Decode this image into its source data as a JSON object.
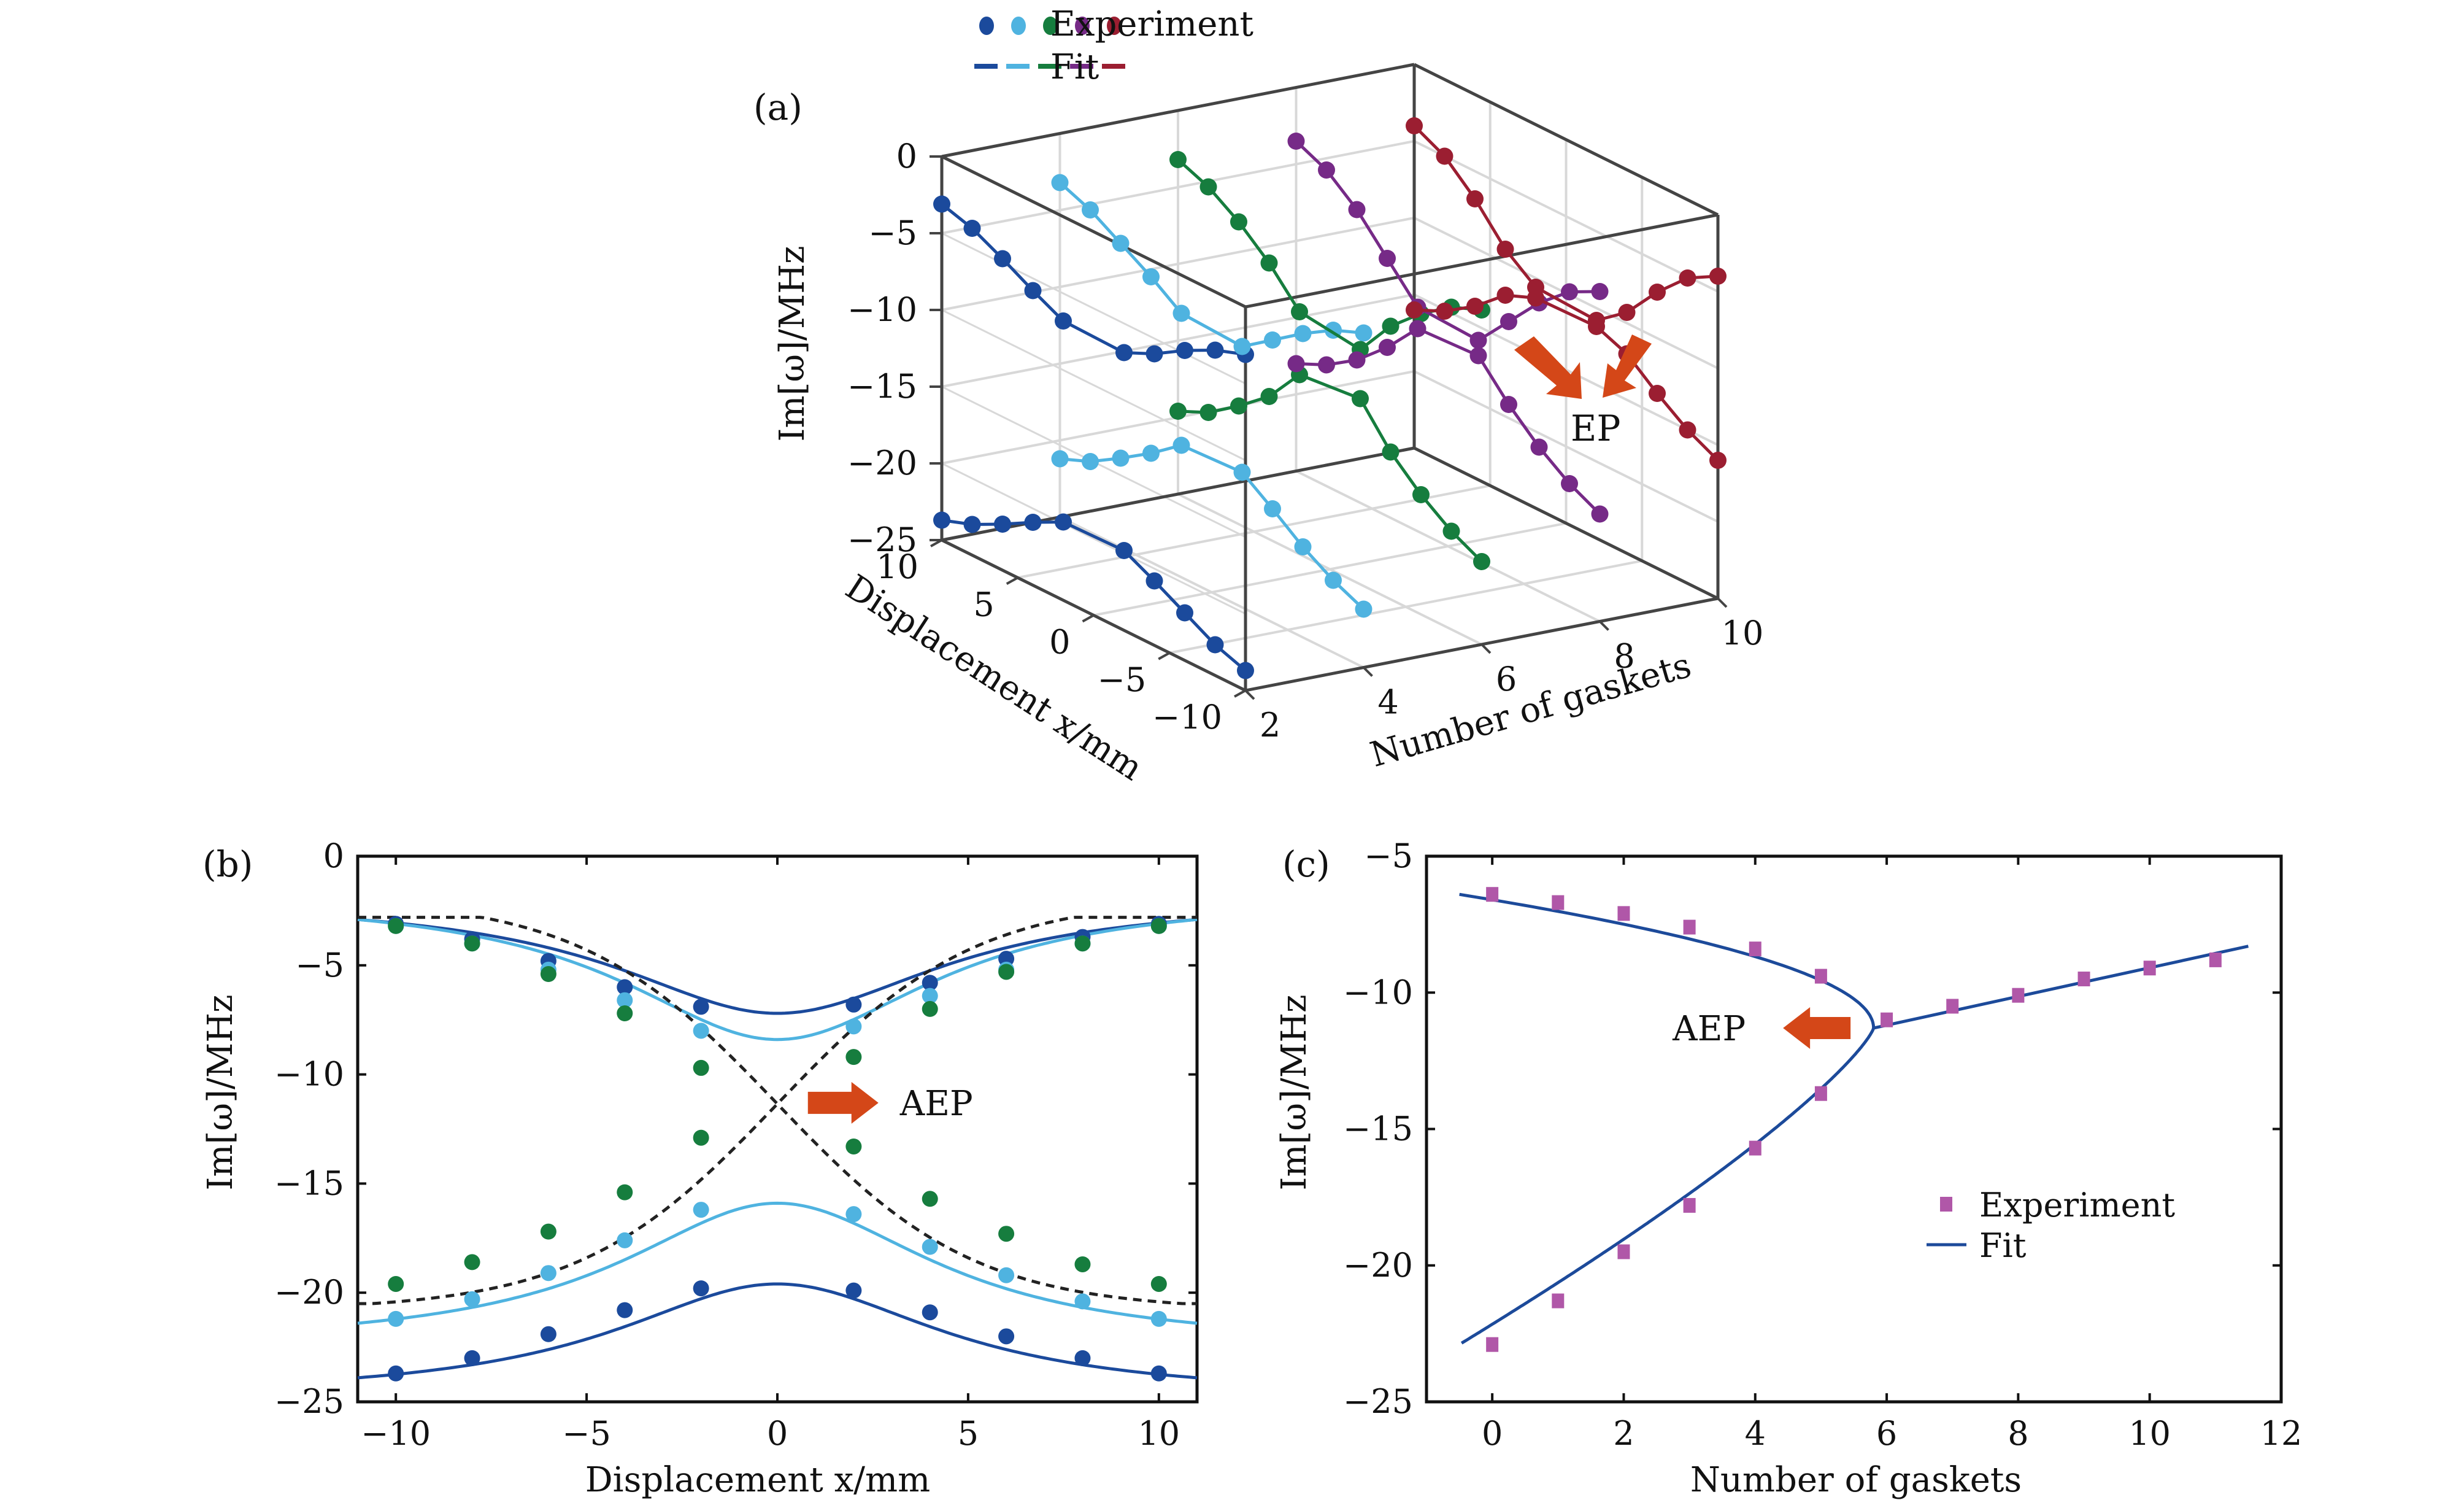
{
  "colors": {
    "dark_blue": "#1b4a9c",
    "light_blue": "#4fb3e0",
    "green": "#167d3e",
    "purple": "#762a87",
    "red": "#9b1e31",
    "magenta": "#b057a8",
    "fit_blue": "#1c4a9a",
    "arrow": "#d44718",
    "dashed": "#222222",
    "grid": "#d8d8d8",
    "axis": "#444444"
  },
  "chart_data": [
    {
      "panel": "(a)",
      "type": "scatter",
      "projection": "3d",
      "legend": {
        "placement": "top-center",
        "entries": [
          {
            "label": "Experiment",
            "marker": "dots",
            "colors": [
              "dark_blue",
              "light_blue",
              "green",
              "purple",
              "red"
            ]
          },
          {
            "label": "Fit",
            "marker": "dashes",
            "colors": [
              "dark_blue",
              "light_blue",
              "green",
              "purple",
              "red"
            ]
          }
        ]
      },
      "xlabel": "Number of gaskets",
      "ylabel": "Displacement x/mm",
      "zlabel": "Im[ω]/MHz",
      "xlim": [
        2,
        10
      ],
      "ylim": [
        -10,
        10
      ],
      "zlim": [
        -25,
        0
      ],
      "x_ticks": [
        "2",
        "4",
        "6",
        "8",
        "10"
      ],
      "y_ticks": [
        "10",
        "5",
        "0",
        "−5",
        "−10"
      ],
      "z_ticks": [
        "0",
        "−5",
        "−10",
        "−15",
        "−20",
        "−25"
      ],
      "annotation": "EP",
      "series": [
        {
          "gaskets": 2,
          "color": "dark_blue",
          "x": [
            -10,
            -8,
            -6,
            -4,
            -2,
            2,
            4,
            6,
            8,
            10
          ],
          "upper": [
            -3.1,
            -3.8,
            -4.8,
            -6.0,
            -6.9,
            -6.8,
            -5.8,
            -4.7,
            -3.7,
            -3.1
          ],
          "lower": [
            -23.7,
            -23.0,
            -21.9,
            -20.8,
            -19.8,
            -19.9,
            -20.9,
            -22.0,
            -23.0,
            -23.7
          ]
        },
        {
          "gaskets": 4,
          "color": "light_blue",
          "x": [
            -10,
            -8,
            -6,
            -4,
            -2,
            2,
            4,
            6,
            8,
            10
          ],
          "upper": [
            -3.2,
            -4.0,
            -5.2,
            -6.6,
            -8.0,
            -7.8,
            -6.4,
            -5.2,
            -4.0,
            -3.2
          ],
          "lower": [
            -21.2,
            -20.3,
            -19.1,
            -17.6,
            -16.2,
            -16.4,
            -17.9,
            -19.2,
            -20.4,
            -21.2
          ]
        },
        {
          "gaskets": 6,
          "color": "green",
          "x": [
            -10,
            -8,
            -6,
            -4,
            -2,
            2,
            4,
            6,
            8,
            10
          ],
          "upper": [
            -3.2,
            -4.0,
            -5.4,
            -7.2,
            -9.7,
            -9.2,
            -7.0,
            -5.3,
            -4.0,
            -3.2
          ],
          "lower": [
            -19.6,
            -18.6,
            -17.2,
            -15.4,
            -12.9,
            -13.3,
            -15.7,
            -17.3,
            -18.7,
            -19.6
          ]
        },
        {
          "gaskets": 8,
          "color": "purple",
          "x": [
            -10,
            -8,
            -6,
            -4,
            -2,
            2,
            4,
            6,
            8,
            10
          ],
          "upper": [
            -3.5,
            -4.5,
            -6.2,
            -8.4,
            -10.6,
            -10.4,
            -8.2,
            -6.0,
            -4.4,
            -3.5
          ],
          "lower": [
            -18.0,
            -17.0,
            -15.6,
            -13.8,
            -11.6,
            -11.8,
            -14.0,
            -15.8,
            -17.1,
            -18.0
          ]
        },
        {
          "gaskets": 10,
          "color": "red",
          "x": [
            -10,
            -8,
            -6,
            -4,
            -2,
            2,
            4,
            6,
            8,
            10
          ],
          "upper": [
            -4.0,
            -5.1,
            -7.0,
            -9.3,
            -10.8,
            -10.6,
            -9.1,
            -6.8,
            -5.0,
            -4.0
          ],
          "lower": [
            -16.0,
            -15.0,
            -13.6,
            -12.0,
            -11.2,
            -11.3,
            -12.1,
            -13.8,
            -15.1,
            -16.0
          ]
        }
      ]
    },
    {
      "panel": "(b)",
      "type": "line",
      "xlabel": "Displacement x/mm",
      "ylabel": "Im[ω]/MHz",
      "xlim": [
        -11,
        11
      ],
      "ylim": [
        -25,
        0
      ],
      "x_ticks": [
        -10,
        -5,
        0,
        5,
        10
      ],
      "x_tick_labels": [
        "−10",
        "−5",
        "0",
        "5",
        "10"
      ],
      "y_ticks": [
        0,
        -5,
        -10,
        -15,
        -20,
        -25
      ],
      "y_tick_labels": [
        "0",
        "−5",
        "−10",
        "−15",
        "−20",
        "−25"
      ],
      "annotation": {
        "text": "AEP",
        "at": [
          0,
          -11.3
        ]
      },
      "x": [
        -10,
        -8,
        -6,
        -4,
        -2,
        2,
        4,
        6,
        8,
        10
      ],
      "series": [
        {
          "name": "gaskets-2-upper",
          "color": "dark_blue",
          "fit": "solid",
          "values": [
            -3.1,
            -3.8,
            -4.8,
            -6.0,
            -6.9,
            -6.8,
            -5.8,
            -4.7,
            -3.7,
            -3.1
          ],
          "fit_params": {
            "center": -5.1,
            "depth": 2.1,
            "width": 5.0,
            "edge": -3.0
          }
        },
        {
          "name": "gaskets-4-upper",
          "color": "light_blue",
          "fit": "solid",
          "values": [
            -3.2,
            -4.0,
            -5.2,
            -6.6,
            -8.0,
            -7.8,
            -6.4,
            -5.2,
            -4.0,
            -3.2
          ]
        },
        {
          "name": "gaskets-6-branch-a",
          "color": "green",
          "fit": "dashed",
          "values": [
            -3.2,
            -4.0,
            -5.4,
            -7.2,
            -9.7,
            -13.3,
            -15.7,
            -17.3,
            -18.7,
            -19.6
          ]
        },
        {
          "name": "gaskets-6-branch-b",
          "color": "green",
          "fit": "dashed",
          "values": [
            -19.6,
            -18.6,
            -17.2,
            -15.4,
            -12.9,
            -9.2,
            -7.0,
            -5.3,
            -4.0,
            -3.2
          ]
        },
        {
          "name": "gaskets-4-lower",
          "color": "light_blue",
          "fit": "solid",
          "values": [
            -21.2,
            -20.3,
            -19.1,
            -17.6,
            -16.2,
            -16.4,
            -17.9,
            -19.2,
            -20.4,
            -21.2
          ]
        },
        {
          "name": "gaskets-2-lower",
          "color": "dark_blue",
          "fit": "solid",
          "values": [
            -23.7,
            -23.0,
            -21.9,
            -20.8,
            -19.8,
            -19.9,
            -20.9,
            -22.0,
            -23.0,
            -23.7
          ]
        }
      ],
      "fits": [
        {
          "color": "dark_blue",
          "style": "solid",
          "min_center": -7.2,
          "edge": -2.9
        },
        {
          "color": "light_blue",
          "style": "solid",
          "min_center": -8.4,
          "edge": -2.9
        },
        {
          "color": "light_blue",
          "style": "solid",
          "min_center": -15.9,
          "edge": -21.4
        },
        {
          "color": "dark_blue",
          "style": "solid",
          "min_center": -19.6,
          "edge": -23.9
        },
        {
          "color": "dashed",
          "style": "dashed",
          "min_center": -11.3,
          "edge_left": -2.9,
          "edge_right": -19.8
        },
        {
          "color": "dashed",
          "style": "dashed",
          "min_center": -11.3,
          "edge_left": -19.8,
          "edge_right": -2.9
        }
      ]
    },
    {
      "panel": "(c)",
      "type": "scatter",
      "xlabel": "Number of gaskets",
      "ylabel": "Im[ω]/MHz",
      "xlim": [
        -1,
        12
      ],
      "ylim": [
        -25,
        -5
      ],
      "x_ticks": [
        0,
        2,
        4,
        6,
        8,
        10,
        12
      ],
      "x_tick_labels": [
        "0",
        "2",
        "4",
        "6",
        "8",
        "10",
        "12"
      ],
      "y_ticks": [
        -5,
        -10,
        -15,
        -20,
        -25
      ],
      "y_tick_labels": [
        "−5",
        "−10",
        "−15",
        "−20",
        "−25"
      ],
      "legend": {
        "placement": "center-right",
        "entries": [
          {
            "label": "Experiment",
            "marker": "square",
            "color": "magenta"
          },
          {
            "label": "Fit",
            "marker": "line",
            "color": "fit_blue"
          }
        ]
      },
      "annotation": {
        "text": "AEP",
        "at": [
          5.8,
          -11.3
        ]
      },
      "experiment": {
        "upper_x": [
          0,
          1,
          2,
          3,
          4,
          5,
          6,
          7,
          8,
          9,
          10,
          11
        ],
        "upper_y": [
          -6.4,
          -6.7,
          -7.1,
          -7.6,
          -8.4,
          -9.4,
          -11.0,
          -10.5,
          -10.1,
          -9.5,
          -9.1,
          -8.8
        ],
        "lower_x": [
          0,
          1,
          2,
          3,
          4,
          5
        ],
        "lower_y": [
          -22.9,
          -21.3,
          -19.5,
          -17.8,
          -15.7,
          -13.7
        ]
      },
      "fit": {
        "ep_x": 5.8,
        "ep_y": -11.3,
        "start_x": -0.5,
        "end_x": 11.5,
        "upper_start_y": -6.4,
        "lower_start_y": -22.9,
        "end_y": -8.3
      }
    }
  ]
}
